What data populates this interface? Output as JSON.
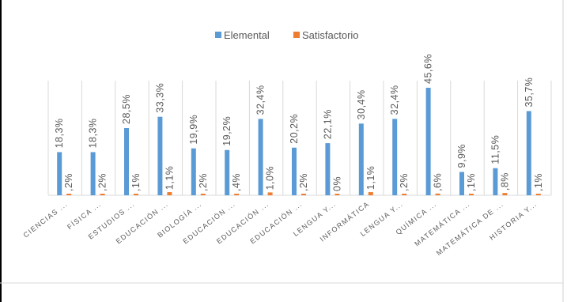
{
  "colors": {
    "elemental": "#5B9BD5",
    "satisfactorio": "#ED7D31",
    "grid": "#D9D9D9",
    "text": "#595959"
  },
  "chart_data": {
    "type": "bar",
    "categories": [
      "CIENCIAS ...",
      "FÍSICA ...",
      "ESTUDIOS ...",
      "EDUCACIÓN ...",
      "BIOLOGÍA ...",
      "EDUCACIÓN ...",
      "EDUCACIÓN ...",
      "EDUCACIÓN ...",
      "LENGUA Y...",
      "INFORMÁTICA",
      "LENGUA Y...",
      "QUÍMICA ...",
      "MATEMÁTICA ...",
      "MATEMÁTICA DE ...",
      "HISTORIA Y..."
    ],
    "series": [
      {
        "name": "Elemental",
        "values": [
          18.3,
          18.3,
          28.5,
          33.3,
          19.9,
          19.2,
          32.4,
          20.2,
          22.1,
          30.4,
          32.4,
          45.6,
          9.9,
          11.5,
          35.7
        ],
        "labels": [
          "18,3%",
          "18,3%",
          "28,5%",
          "33,3%",
          "19,9%",
          "19,2%",
          "32,4%",
          "20,2%",
          "22,1%",
          "30,4%",
          "32,4%",
          "45,6%",
          "9,9%",
          "11,5%",
          "35,7%"
        ]
      },
      {
        "name": "Satisfactorio",
        "values": [
          0.2,
          0.2,
          0.1,
          1.1,
          0.2,
          0.4,
          1.0,
          0.2,
          0.0,
          1.1,
          0.2,
          0.6,
          0.1,
          0.8,
          0.1
        ],
        "labels": [
          ",2%",
          ",2%",
          ",1%",
          "1,1%",
          ",2%",
          ",4%",
          "1,0%",
          ",2%",
          "0%",
          "1,1%",
          ",2%",
          ",6%",
          ",1%",
          ",8%",
          ",1%"
        ]
      }
    ],
    "ylim": [
      0,
      50
    ],
    "grid": "vertical separators only",
    "legend": "top-center"
  }
}
